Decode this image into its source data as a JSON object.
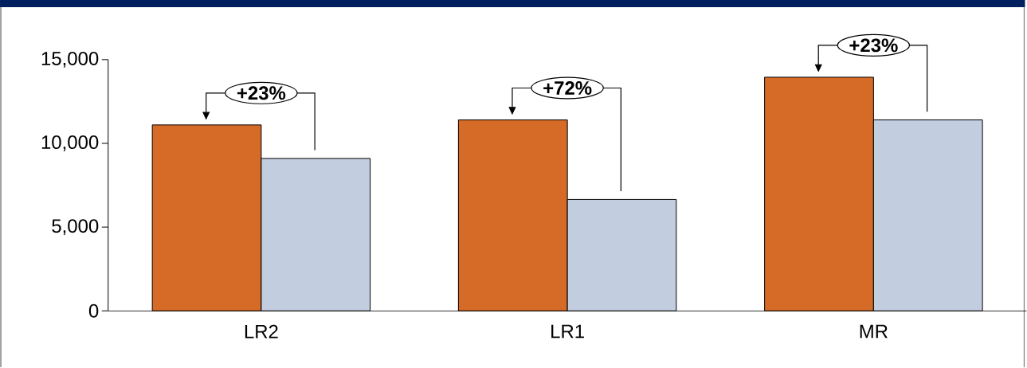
{
  "chart_data": {
    "type": "bar",
    "categories": [
      "LR2",
      "LR1",
      "MR"
    ],
    "series": [
      {
        "color": "#d66b27",
        "values": [
          11100,
          11400,
          13950
        ]
      },
      {
        "color": "#c3cde0",
        "values": [
          9100,
          6650,
          11400
        ]
      }
    ],
    "ylim": [
      0,
      15000
    ],
    "yticks": [
      0,
      {
        "value": 5000,
        "label": "5,000"
      },
      {
        "value": 10000,
        "label": "10,000"
      },
      {
        "value": 15000,
        "label": "15,000"
      }
    ],
    "annotations": [
      "+23%",
      "+72%",
      "+23%"
    ],
    "grid": false
  }
}
